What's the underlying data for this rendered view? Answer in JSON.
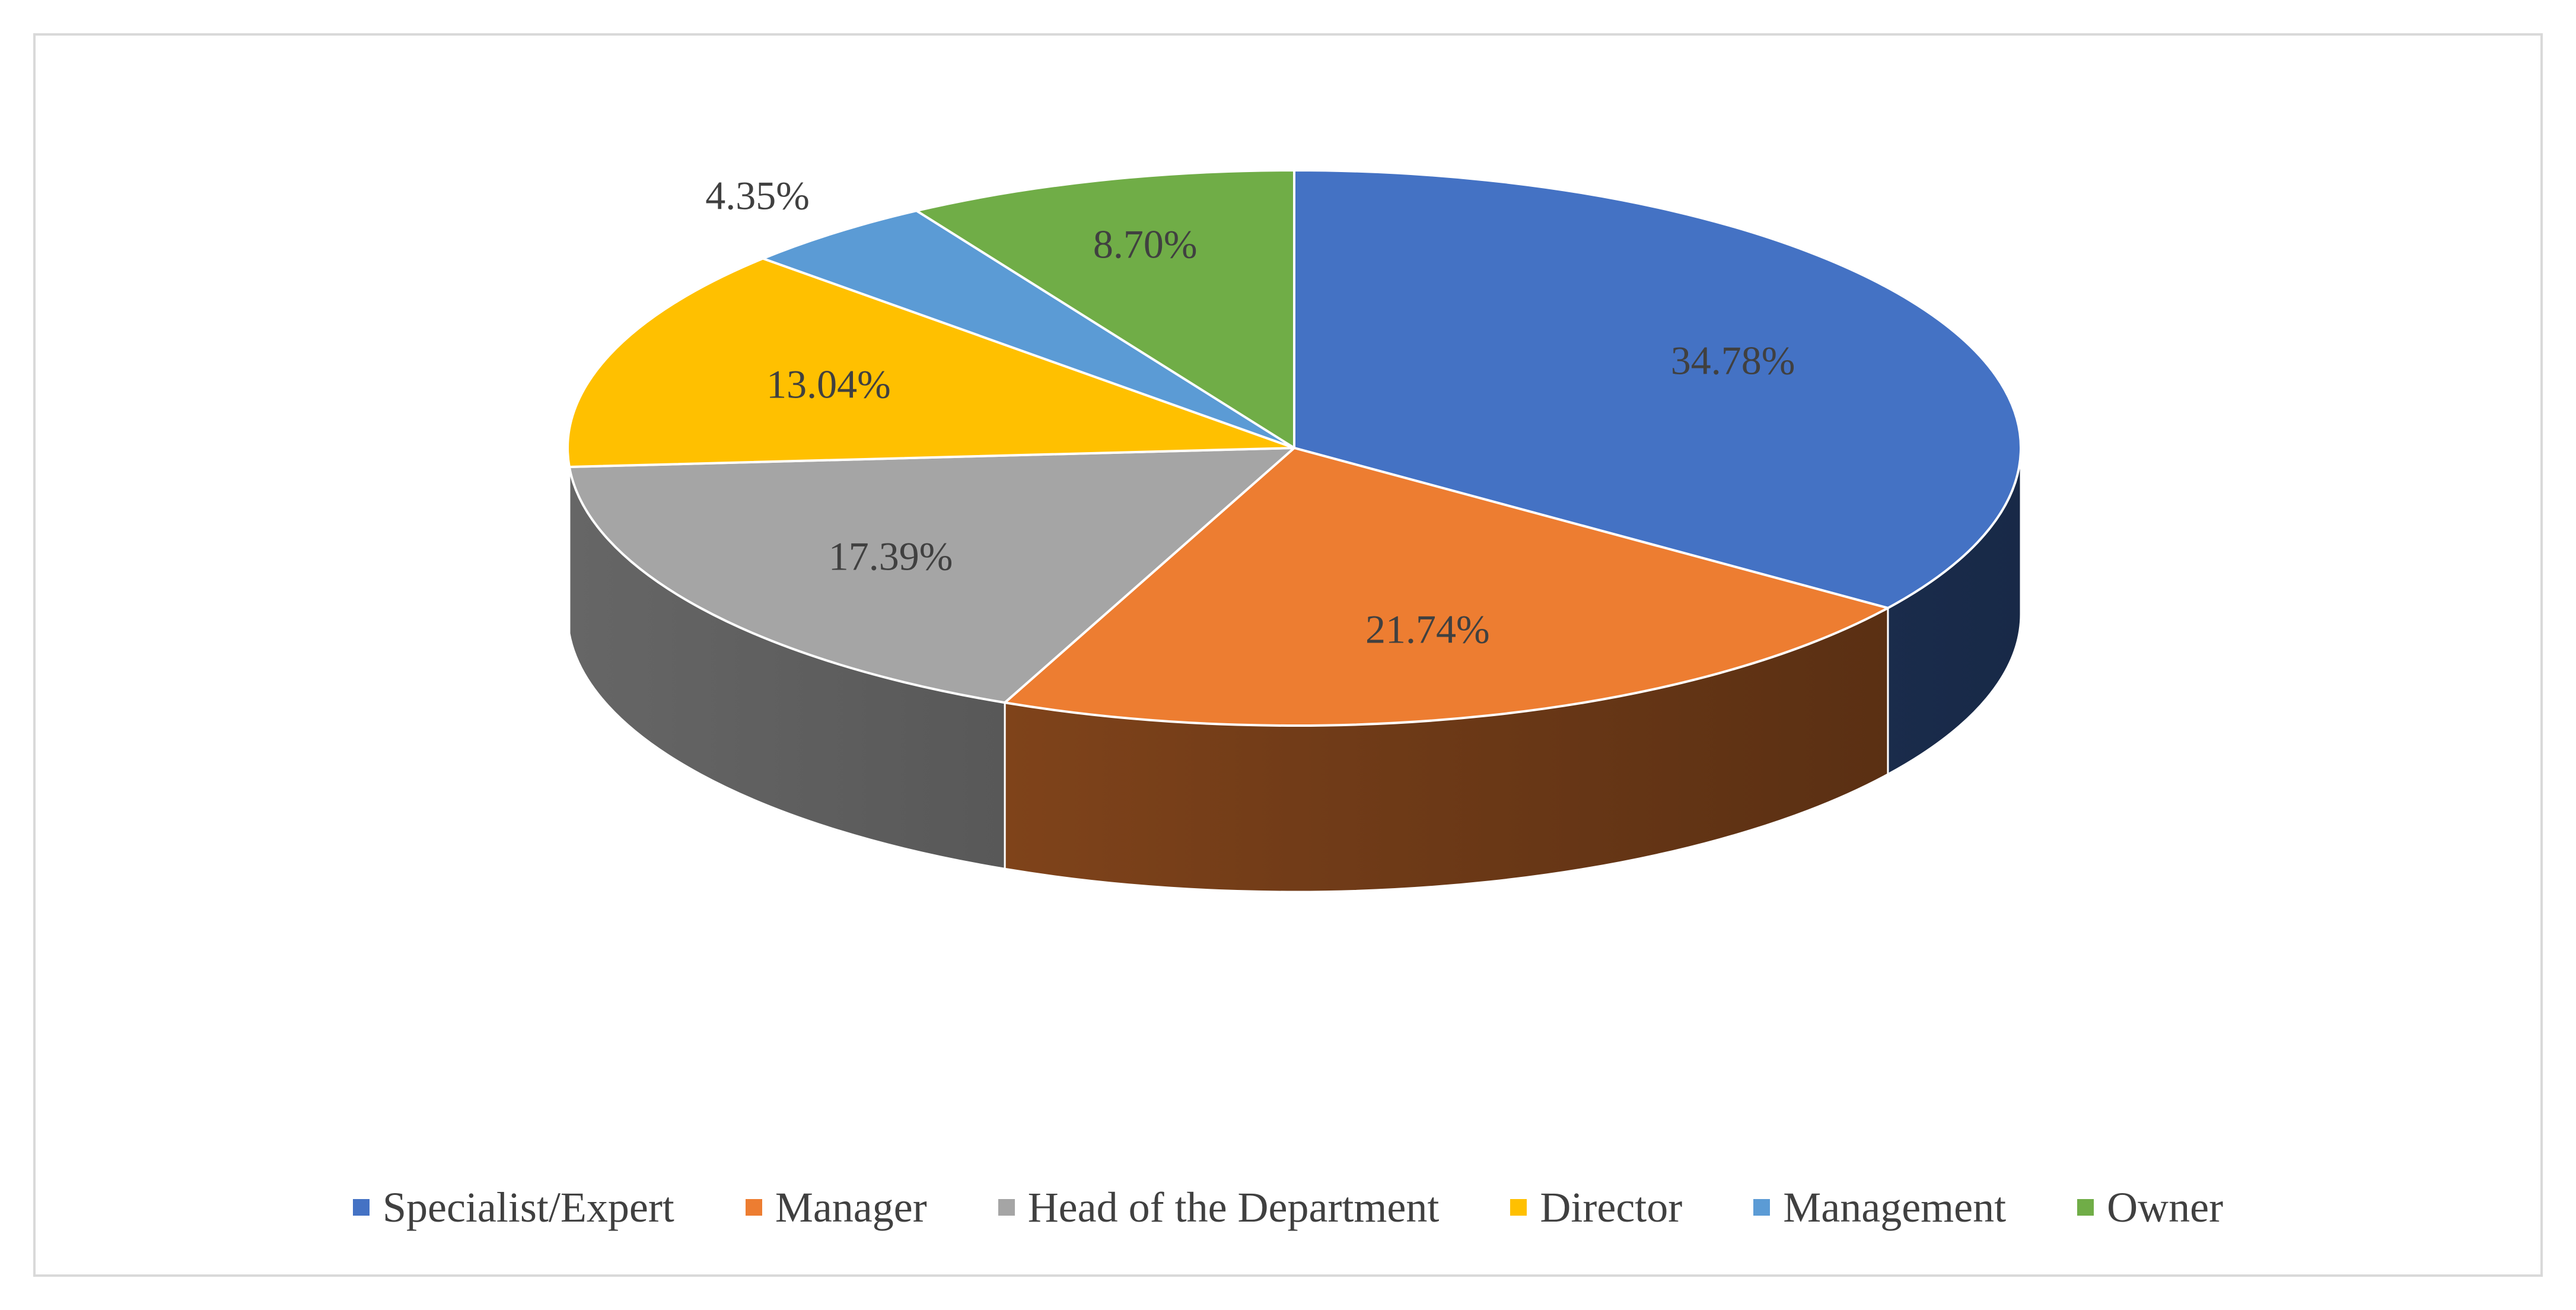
{
  "chart_data": {
    "type": "pie",
    "title": "",
    "style": "3d-tilted",
    "categories": [
      "Specialist/Expert",
      "Manager",
      "Head of the Department",
      "Director",
      "Management",
      "Owner"
    ],
    "values": [
      34.78,
      21.74,
      17.39,
      13.04,
      4.35,
      8.7
    ],
    "labels": [
      "34.78%",
      "21.74%",
      "17.39%",
      "13.04%",
      "4.35%",
      "8.70%"
    ],
    "colors": [
      "#4472c4",
      "#ed7d31",
      "#a5a5a5",
      "#ffc000",
      "#5b9bd5",
      "#70ad47"
    ],
    "legend_position": "bottom"
  }
}
